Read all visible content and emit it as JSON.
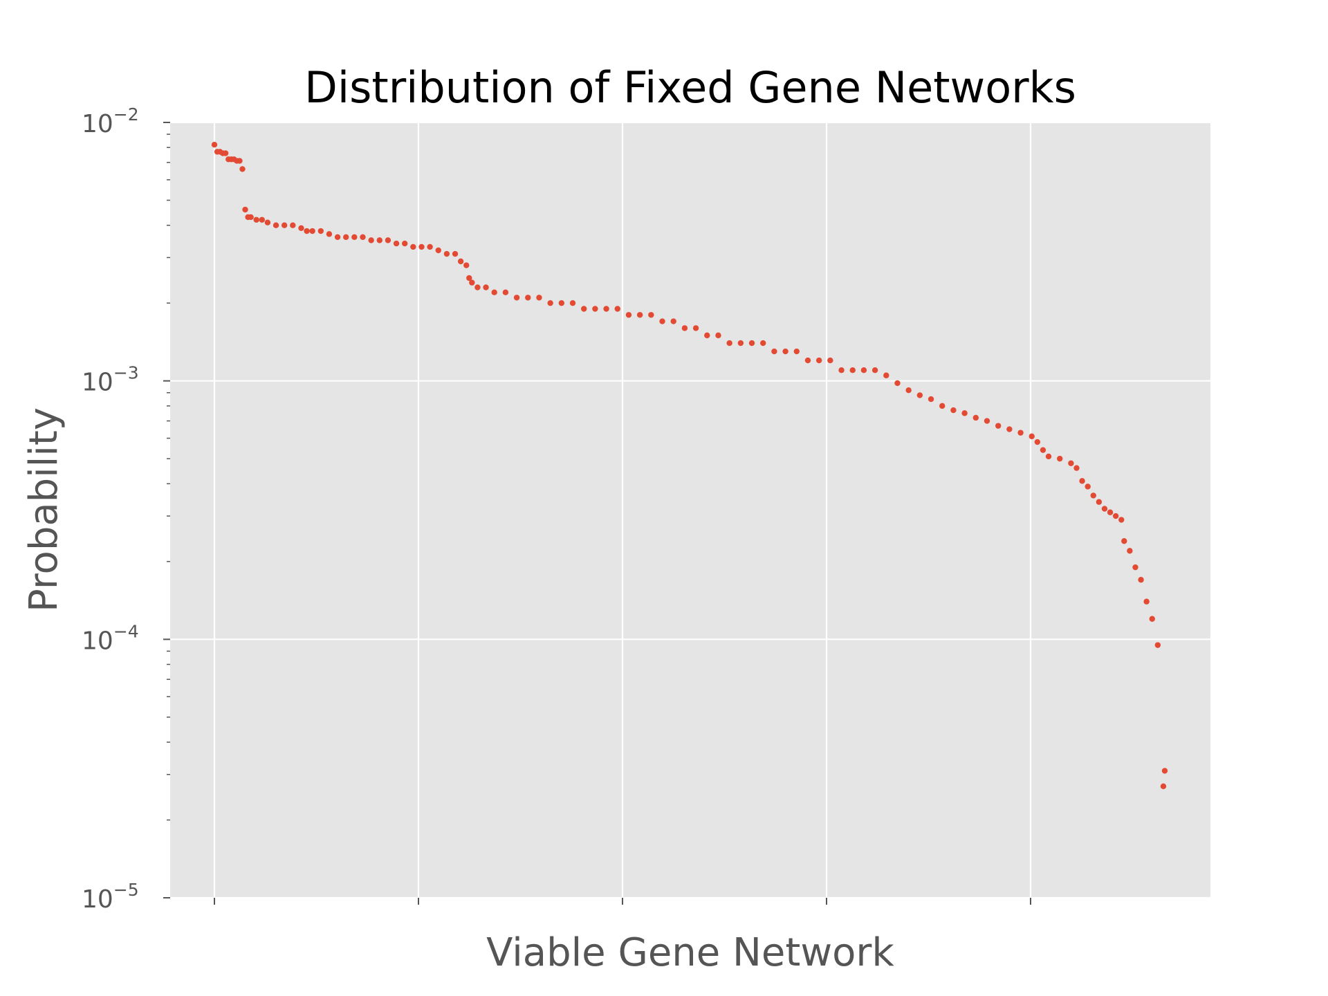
{
  "chart_data": {
    "type": "scatter",
    "title": "Distribution of Fixed Gene Networks",
    "xlabel": "Viable Gene Network",
    "ylabel": "Probability",
    "y_scale": "log",
    "ylim": [
      1e-05,
      0.01
    ],
    "x_ticks_labeled": false,
    "y_ticks": [
      {
        "value": 1e-05,
        "base": "10",
        "exp": "−5"
      },
      {
        "value": 0.0001,
        "base": "10",
        "exp": "−4"
      },
      {
        "value": 0.001,
        "base": "10",
        "exp": "−3"
      },
      {
        "value": 0.01,
        "base": "10",
        "exp": "−2"
      }
    ],
    "grid": true,
    "style": "ggplot",
    "marker_color": "#E24A33",
    "background_color": "#E5E5E5",
    "series": [
      {
        "points": [
          [
            0,
            0.0082
          ],
          [
            1,
            0.0077
          ],
          [
            2,
            0.0077
          ],
          [
            3,
            0.0076
          ],
          [
            4,
            0.0076
          ],
          [
            5,
            0.0072
          ],
          [
            6,
            0.0072
          ],
          [
            7,
            0.0072
          ],
          [
            8,
            0.0071
          ],
          [
            9,
            0.0071
          ],
          [
            10,
            0.0066
          ],
          [
            11,
            0.0046
          ],
          [
            12,
            0.0043
          ],
          [
            13,
            0.0043
          ],
          [
            15,
            0.0042
          ],
          [
            17,
            0.0042
          ],
          [
            19,
            0.0041
          ],
          [
            22,
            0.004
          ],
          [
            25,
            0.004
          ],
          [
            28,
            0.004
          ],
          [
            31,
            0.0039
          ],
          [
            33,
            0.0038
          ],
          [
            35,
            0.0038
          ],
          [
            38,
            0.0038
          ],
          [
            41,
            0.0037
          ],
          [
            44,
            0.0036
          ],
          [
            47,
            0.0036
          ],
          [
            50,
            0.0036
          ],
          [
            53,
            0.0036
          ],
          [
            56,
            0.0035
          ],
          [
            59,
            0.0035
          ],
          [
            62,
            0.0035
          ],
          [
            65,
            0.0034
          ],
          [
            68,
            0.0034
          ],
          [
            71,
            0.0033
          ],
          [
            74,
            0.0033
          ],
          [
            77,
            0.0033
          ],
          [
            80,
            0.0032
          ],
          [
            83,
            0.0031
          ],
          [
            86,
            0.0031
          ],
          [
            88,
            0.0029
          ],
          [
            90,
            0.0028
          ],
          [
            91,
            0.0025
          ],
          [
            92,
            0.0024
          ],
          [
            94,
            0.0023
          ],
          [
            97,
            0.0023
          ],
          [
            100,
            0.0022
          ],
          [
            104,
            0.0022
          ],
          [
            108,
            0.0021
          ],
          [
            112,
            0.0021
          ],
          [
            116,
            0.0021
          ],
          [
            120,
            0.002
          ],
          [
            124,
            0.002
          ],
          [
            128,
            0.002
          ],
          [
            132,
            0.0019
          ],
          [
            136,
            0.0019
          ],
          [
            140,
            0.0019
          ],
          [
            144,
            0.0019
          ],
          [
            148,
            0.0018
          ],
          [
            152,
            0.0018
          ],
          [
            156,
            0.0018
          ],
          [
            160,
            0.0017
          ],
          [
            164,
            0.0017
          ],
          [
            168,
            0.0016
          ],
          [
            172,
            0.0016
          ],
          [
            176,
            0.0015
          ],
          [
            180,
            0.0015
          ],
          [
            184,
            0.0014
          ],
          [
            188,
            0.0014
          ],
          [
            192,
            0.0014
          ],
          [
            196,
            0.0014
          ],
          [
            200,
            0.0013
          ],
          [
            204,
            0.0013
          ],
          [
            208,
            0.0013
          ],
          [
            212,
            0.0012
          ],
          [
            216,
            0.0012
          ],
          [
            220,
            0.0012
          ],
          [
            224,
            0.0011
          ],
          [
            228,
            0.0011
          ],
          [
            232,
            0.0011
          ],
          [
            236,
            0.0011
          ],
          [
            240,
            0.00105
          ],
          [
            244,
            0.00098
          ],
          [
            248,
            0.00092
          ],
          [
            252,
            0.00088
          ],
          [
            256,
            0.00085
          ],
          [
            260,
            0.0008
          ],
          [
            264,
            0.00077
          ],
          [
            268,
            0.00075
          ],
          [
            272,
            0.00072
          ],
          [
            276,
            0.0007
          ],
          [
            280,
            0.00067
          ],
          [
            284,
            0.00065
          ],
          [
            288,
            0.00063
          ],
          [
            292,
            0.00061
          ],
          [
            294,
            0.00058
          ],
          [
            296,
            0.00054
          ],
          [
            298,
            0.00051
          ],
          [
            302,
            0.0005
          ],
          [
            306,
            0.00048
          ],
          [
            308,
            0.00046
          ],
          [
            310,
            0.00041
          ],
          [
            312,
            0.00039
          ],
          [
            314,
            0.00036
          ],
          [
            316,
            0.00034
          ],
          [
            318,
            0.00032
          ],
          [
            320,
            0.00031
          ],
          [
            322,
            0.0003
          ],
          [
            324,
            0.00029
          ],
          [
            325,
            0.00024
          ],
          [
            327,
            0.00022
          ],
          [
            329,
            0.00019
          ],
          [
            331,
            0.00017
          ],
          [
            333,
            0.00014
          ],
          [
            335,
            0.00012
          ],
          [
            337,
            9.5e-05
          ],
          [
            339,
            2.7e-05
          ],
          [
            339.5,
            3.1e-05
          ]
        ]
      }
    ]
  }
}
